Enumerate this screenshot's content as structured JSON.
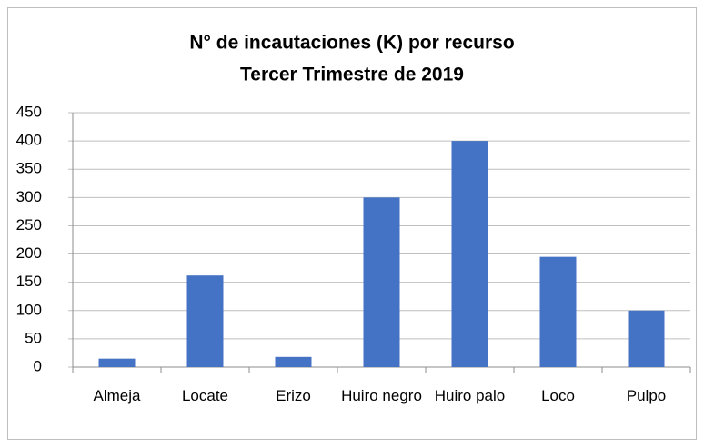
{
  "chart_data": {
    "type": "bar",
    "title": "N° de incautaciones (K) por recurso",
    "subtitle": "Tercer Trimestre de 2019",
    "categories": [
      "Almeja",
      "Locate",
      "Erizo",
      "Huiro negro",
      "Huiro palo",
      "Loco",
      "Pulpo"
    ],
    "values": [
      15,
      162,
      18,
      300,
      400,
      195,
      100
    ],
    "color": "#4472c4",
    "ylim": [
      0,
      450
    ],
    "yticks": [
      0,
      50,
      100,
      150,
      200,
      250,
      300,
      350,
      400,
      450
    ],
    "grid": true
  }
}
